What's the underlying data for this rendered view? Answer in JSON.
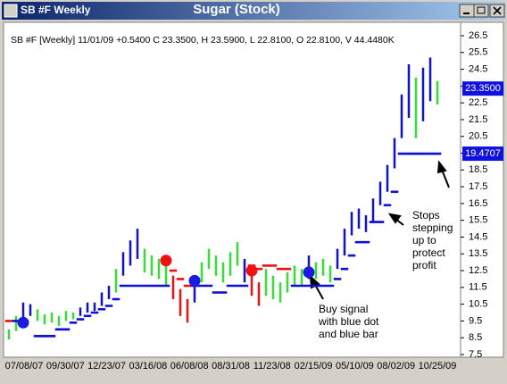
{
  "window": {
    "title": "SB #F Weekly"
  },
  "chart_data": {
    "type": "hilo",
    "title": "Sugar (Stock)",
    "subtitle": "SB #F [Weekly] 11/01/09 +0.5400 C 23.3500, H 23.5900, L 22.8100, O 22.8100, V 44.4480K",
    "categories": [
      "07/08/07",
      "09/30/07",
      "12/23/07",
      "03/16/08",
      "06/08/08",
      "08/31/08",
      "11/23/08",
      "02/15/09",
      "05/10/09",
      "08/02/09",
      "10/25/09"
    ],
    "ylim": [
      7.5,
      26.5
    ],
    "yticks": [
      26.5,
      25.5,
      24.5,
      23.5,
      22.5,
      21.5,
      20.5,
      19.5,
      18.5,
      17.5,
      16.5,
      15.5,
      14.5,
      13.5,
      12.5,
      11.5,
      10.5,
      9.5,
      8.5,
      7.5
    ],
    "bars": [
      {
        "high": 9.0,
        "low": 8.4,
        "color": "#33dd33"
      },
      {
        "high": 9.8,
        "low": 8.9,
        "color": "#33dd33"
      },
      {
        "high": 10.6,
        "low": 9.6,
        "color": "#1010d0"
      },
      {
        "high": 10.5,
        "low": 9.8,
        "color": "#1010d0"
      },
      {
        "high": 10.2,
        "low": 9.5,
        "color": "#33dd33"
      },
      {
        "high": 9.9,
        "low": 9.3,
        "color": "#33dd33"
      },
      {
        "high": 10.0,
        "low": 9.4,
        "color": "#33dd33"
      },
      {
        "high": 9.8,
        "low": 9.2,
        "color": "#33dd33"
      },
      {
        "high": 10.1,
        "low": 9.5,
        "color": "#33dd33"
      },
      {
        "high": 10.0,
        "low": 9.6,
        "color": "#33dd33"
      },
      {
        "high": 10.3,
        "low": 9.8,
        "color": "#1010d0"
      },
      {
        "high": 10.6,
        "low": 10.0,
        "color": "#1010d0"
      },
      {
        "high": 10.6,
        "low": 10.1,
        "color": "#1010d0"
      },
      {
        "high": 11.2,
        "low": 10.4,
        "color": "#1010d0"
      },
      {
        "high": 11.6,
        "low": 10.8,
        "color": "#1010d0"
      },
      {
        "high": 12.6,
        "low": 11.2,
        "color": "#33dd33"
      },
      {
        "high": 13.6,
        "low": 12.2,
        "color": "#1010d0"
      },
      {
        "high": 14.3,
        "low": 12.8,
        "color": "#1010d0"
      },
      {
        "high": 15.0,
        "low": 13.2,
        "color": "#1010d0"
      },
      {
        "high": 13.8,
        "low": 12.4,
        "color": "#33dd33"
      },
      {
        "high": 13.4,
        "low": 12.2,
        "color": "#33dd33"
      },
      {
        "high": 13.2,
        "low": 12.0,
        "color": "#33dd33"
      },
      {
        "high": 12.8,
        "low": 11.6,
        "color": "#33dd33"
      },
      {
        "high": 12.2,
        "low": 10.8,
        "color": "#ee1111"
      },
      {
        "high": 11.4,
        "low": 9.8,
        "color": "#ee1111"
      },
      {
        "high": 10.8,
        "low": 9.4,
        "color": "#ee1111"
      },
      {
        "high": 12.0,
        "low": 10.6,
        "color": "#1010d0"
      },
      {
        "high": 13.0,
        "low": 11.8,
        "color": "#33dd33"
      },
      {
        "high": 13.8,
        "low": 12.6,
        "color": "#33dd33"
      },
      {
        "high": 13.4,
        "low": 12.2,
        "color": "#33dd33"
      },
      {
        "high": 13.0,
        "low": 11.8,
        "color": "#33dd33"
      },
      {
        "high": 13.6,
        "low": 12.2,
        "color": "#33dd33"
      },
      {
        "high": 14.2,
        "low": 12.8,
        "color": "#33dd33"
      },
      {
        "high": 13.2,
        "low": 11.8,
        "color": "#1010d0"
      },
      {
        "high": 12.4,
        "low": 11.0,
        "color": "#ee1111"
      },
      {
        "high": 11.8,
        "low": 10.4,
        "color": "#ee1111"
      },
      {
        "high": 12.6,
        "low": 11.0,
        "color": "#33dd33"
      },
      {
        "high": 12.2,
        "low": 10.8,
        "color": "#33dd33"
      },
      {
        "high": 11.8,
        "low": 10.6,
        "color": "#33dd33"
      },
      {
        "high": 12.4,
        "low": 11.2,
        "color": "#33dd33"
      },
      {
        "high": 12.8,
        "low": 11.6,
        "color": "#33dd33"
      },
      {
        "high": 12.6,
        "low": 11.6,
        "color": "#33dd33"
      },
      {
        "high": 13.4,
        "low": 12.0,
        "color": "#1010d0"
      },
      {
        "high": 13.0,
        "low": 12.0,
        "color": "#33dd33"
      },
      {
        "high": 13.2,
        "low": 12.2,
        "color": "#33dd33"
      },
      {
        "high": 12.8,
        "low": 11.8,
        "color": "#33dd33"
      },
      {
        "high": 13.8,
        "low": 12.6,
        "color": "#1010d0"
      },
      {
        "high": 15.0,
        "low": 13.4,
        "color": "#1010d0"
      },
      {
        "high": 16.0,
        "low": 14.6,
        "color": "#1010d0"
      },
      {
        "high": 16.2,
        "low": 15.0,
        "color": "#1010d0"
      },
      {
        "high": 15.8,
        "low": 14.8,
        "color": "#1010d0"
      },
      {
        "high": 16.8,
        "low": 15.4,
        "color": "#1010d0"
      },
      {
        "high": 17.8,
        "low": 16.4,
        "color": "#1010d0"
      },
      {
        "high": 18.8,
        "low": 17.2,
        "color": "#1010d0"
      },
      {
        "high": 20.4,
        "low": 18.6,
        "color": "#1010d0"
      },
      {
        "high": 23.0,
        "low": 20.4,
        "color": "#1010d0"
      },
      {
        "high": 24.8,
        "low": 21.6,
        "color": "#1010d0"
      },
      {
        "high": 24.0,
        "low": 20.4,
        "color": "#33dd33"
      },
      {
        "high": 24.6,
        "low": 21.4,
        "color": "#1010d0"
      },
      {
        "high": 25.2,
        "low": 22.6,
        "color": "#1010d0"
      },
      {
        "high": 23.8,
        "low": 22.4,
        "color": "#33dd33"
      }
    ],
    "stops": [
      9.5,
      9.5,
      9.5,
      null,
      8.6,
      8.6,
      8.6,
      9.0,
      9.0,
      9.4,
      9.6,
      9.8,
      10.0,
      10.2,
      10.4,
      10.8,
      11.6,
      11.6,
      11.6,
      11.6,
      11.6,
      11.6,
      11.6,
      12.5,
      12.0,
      11.6,
      11.6,
      11.6,
      11.6,
      11.2,
      11.2,
      11.6,
      11.6,
      11.6,
      12.8,
      12.6,
      12.8,
      12.8,
      12.6,
      12.6,
      11.6,
      11.6,
      11.6,
      11.6,
      11.6,
      11.6,
      12.0,
      12.6,
      13.4,
      14.2,
      14.2,
      15.4,
      15.4,
      16.4,
      17.2,
      19.4707,
      19.4707,
      19.4707,
      19.4707,
      19.4707,
      19.4707
    ],
    "stop_colors": {
      "above": "#ee1111",
      "below": "#1010d0"
    },
    "signals": [
      {
        "bar": 2,
        "value": 9.4,
        "color": "#1a1ae0"
      },
      {
        "bar": 22,
        "value": 13.1,
        "color": "#ee1111"
      },
      {
        "bar": 26,
        "value": 11.9,
        "color": "#1a1ae0"
      },
      {
        "bar": 34,
        "value": 12.5,
        "color": "#ee1111"
      },
      {
        "bar": 42,
        "value": 12.4,
        "color": "#1a1ae0"
      }
    ],
    "price_labels": [
      {
        "value": 23.35,
        "label": "23.3500"
      },
      {
        "value": 19.4707,
        "label": "19.4707"
      }
    ],
    "annotations": [
      {
        "lines": [
          "Buy signal",
          "with blue dot",
          "and blue bar"
        ]
      },
      {
        "lines": [
          "Stops",
          "stepping",
          "up to",
          "protect",
          "profit"
        ]
      }
    ]
  }
}
